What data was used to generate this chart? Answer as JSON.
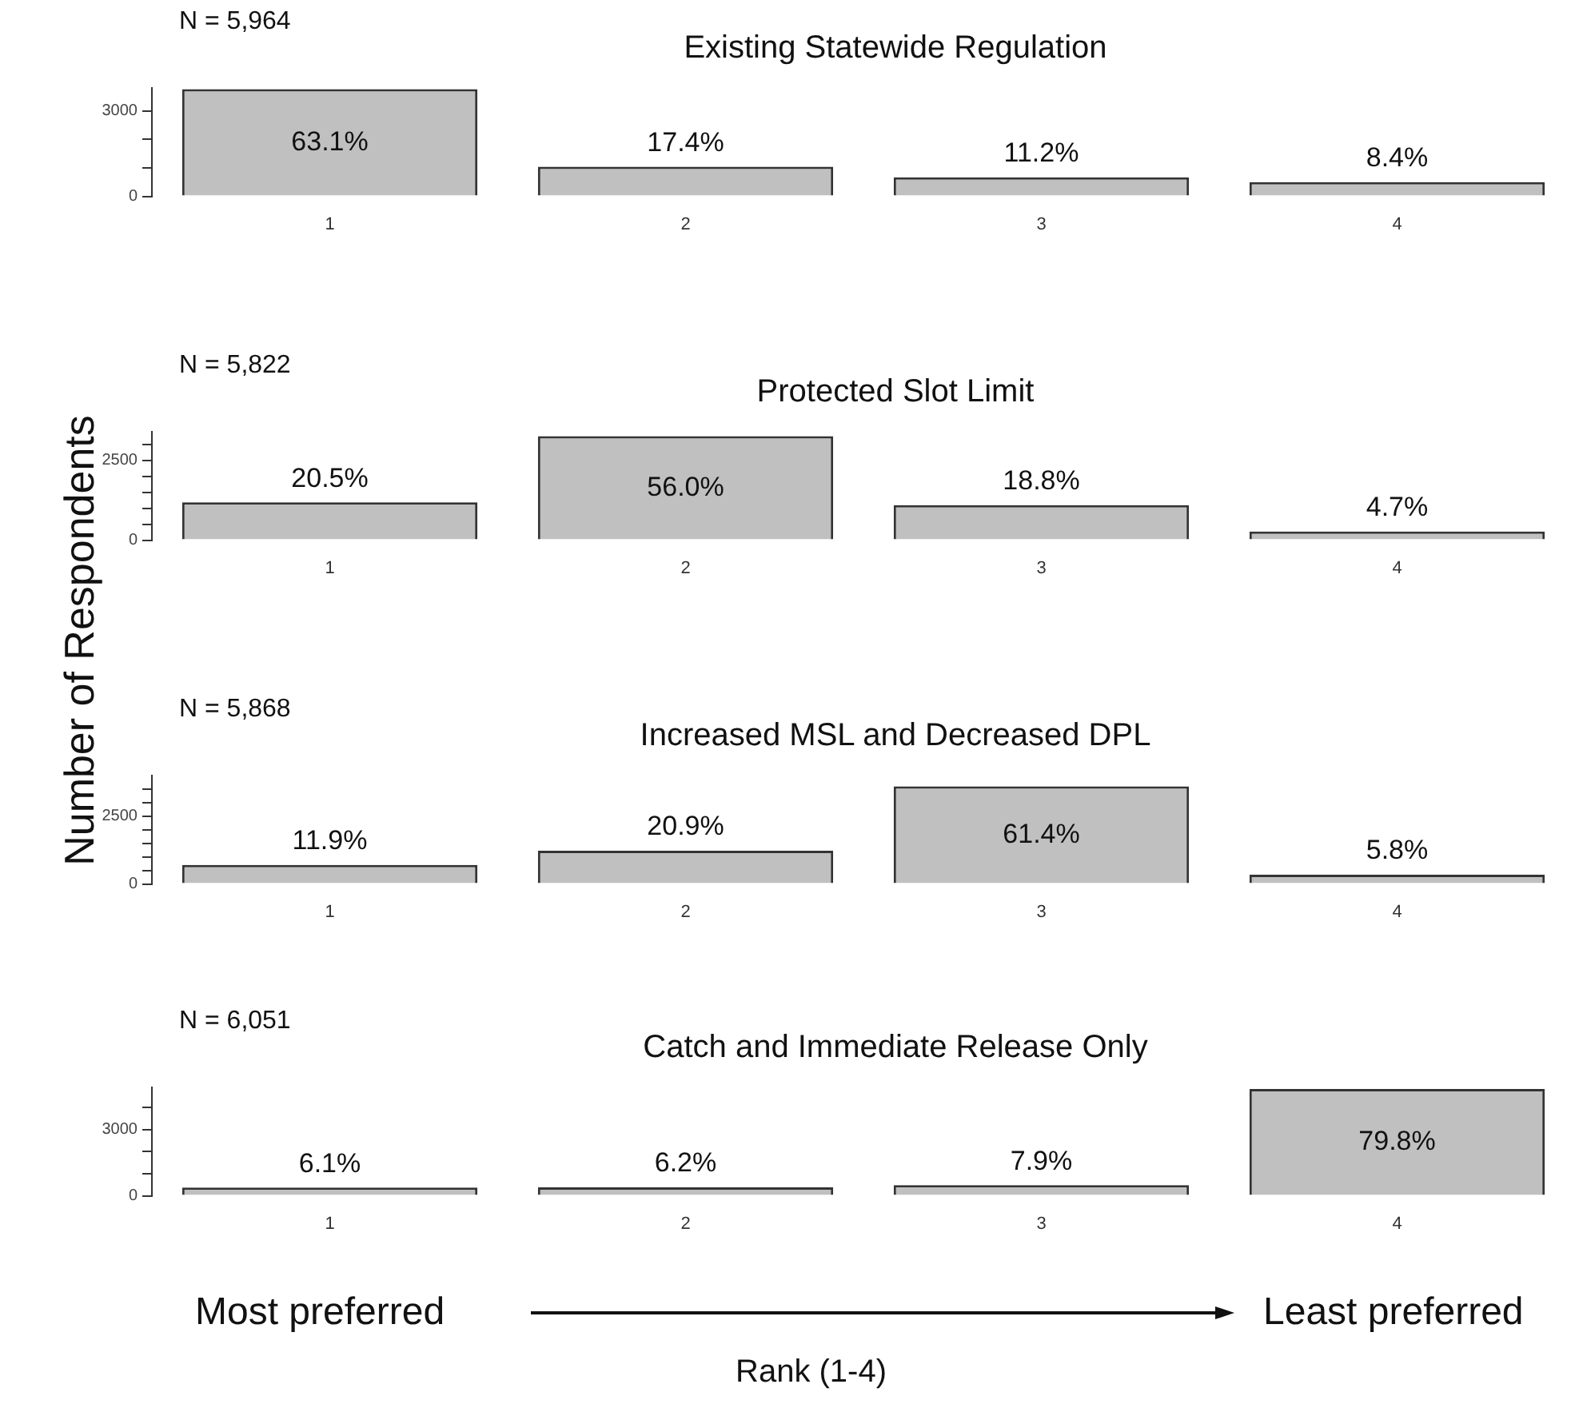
{
  "chart_data": [
    {
      "type": "bar",
      "title": "Existing Statewide Regulation",
      "ylabel": "Number of Respondents",
      "categories": [
        "1",
        "2",
        "3",
        "4"
      ],
      "values": [
        3760,
        1040,
        670,
        500
      ],
      "color": "#c0c0c0",
      "ylim": [
        0,
        3800
      ],
      "yticks": [
        0,
        {
          "value": 1000,
          "label": null
        },
        {
          "value": 2000,
          "label": null
        },
        3000
      ],
      "grid": false,
      "annotations": [
        "N = 5,964",
        {
          "text": "63.1%",
          "x": "1",
          "y": 3760
        },
        {
          "text": "17.4%",
          "x": "2",
          "y": 1040
        },
        {
          "text": "11.2%",
          "x": "3",
          "y": 670
        },
        {
          "text": "8.4%",
          "x": "4",
          "y": 500
        }
      ]
    },
    {
      "type": "bar",
      "title": "Protected Slot Limit",
      "categories": [
        "1",
        "2",
        "3",
        "4"
      ],
      "values": [
        1190,
        3260,
        1100,
        270
      ],
      "color": "#c0c0c0",
      "ylim": [
        0,
        3400
      ],
      "yticks": [
        0,
        {
          "value": 500,
          "label": null
        },
        {
          "value": 1000,
          "label": null
        },
        {
          "value": 1500,
          "label": null
        },
        {
          "value": 2000,
          "label": null
        },
        2500,
        {
          "value": 3000,
          "label": null
        }
      ],
      "grid": false,
      "annotations": [
        "N = 5,822",
        {
          "text": "20.5%",
          "x": "1",
          "y": 1190
        },
        {
          "text": "56.0%",
          "x": "2",
          "y": 3260
        },
        {
          "text": "18.8%",
          "x": "3",
          "y": 1100
        },
        {
          "text": "4.7%",
          "x": "4",
          "y": 270
        }
      ]
    },
    {
      "type": "bar",
      "title": "Increased MSL and Decreased DPL",
      "categories": [
        "1",
        "2",
        "3",
        "4"
      ],
      "values": [
        700,
        1230,
        3600,
        340
      ],
      "color": "#c0c0c0",
      "ylim": [
        0,
        4000
      ],
      "yticks": [
        0,
        {
          "value": 500,
          "label": null
        },
        {
          "value": 1000,
          "label": null
        },
        {
          "value": 1500,
          "label": null
        },
        {
          "value": 2000,
          "label": null
        },
        2500,
        {
          "value": 3000,
          "label": null
        },
        {
          "value": 3500,
          "label": null
        }
      ],
      "grid": false,
      "annotations": [
        "N = 5,868",
        {
          "text": "11.9%",
          "x": "1",
          "y": 700
        },
        {
          "text": "20.9%",
          "x": "2",
          "y": 1230
        },
        {
          "text": "61.4%",
          "x": "3",
          "y": 3600
        },
        {
          "text": "5.8%",
          "x": "4",
          "y": 340
        }
      ]
    },
    {
      "type": "bar",
      "title": "Catch and Immediate Release Only",
      "xlabel": "Rank (1-4)",
      "categories": [
        "1",
        "2",
        "3",
        "4"
      ],
      "values": [
        370,
        380,
        480,
        4830
      ],
      "color": "#c0c0c0",
      "ylim": [
        0,
        4900
      ],
      "yticks": [
        0,
        {
          "value": 1000,
          "label": null
        },
        {
          "value": 2000,
          "label": null
        },
        3000,
        {
          "value": 4000,
          "label": null
        }
      ],
      "grid": false,
      "annotations": [
        "N = 6,051",
        "Most preferred",
        "Least preferred",
        {
          "text": "6.1%",
          "x": "1",
          "y": 370
        },
        {
          "text": "6.2%",
          "x": "2",
          "y": 380
        },
        {
          "text": "7.9%",
          "x": "3",
          "y": 480
        },
        {
          "text": "79.8%",
          "x": "4",
          "y": 4830
        }
      ]
    }
  ]
}
